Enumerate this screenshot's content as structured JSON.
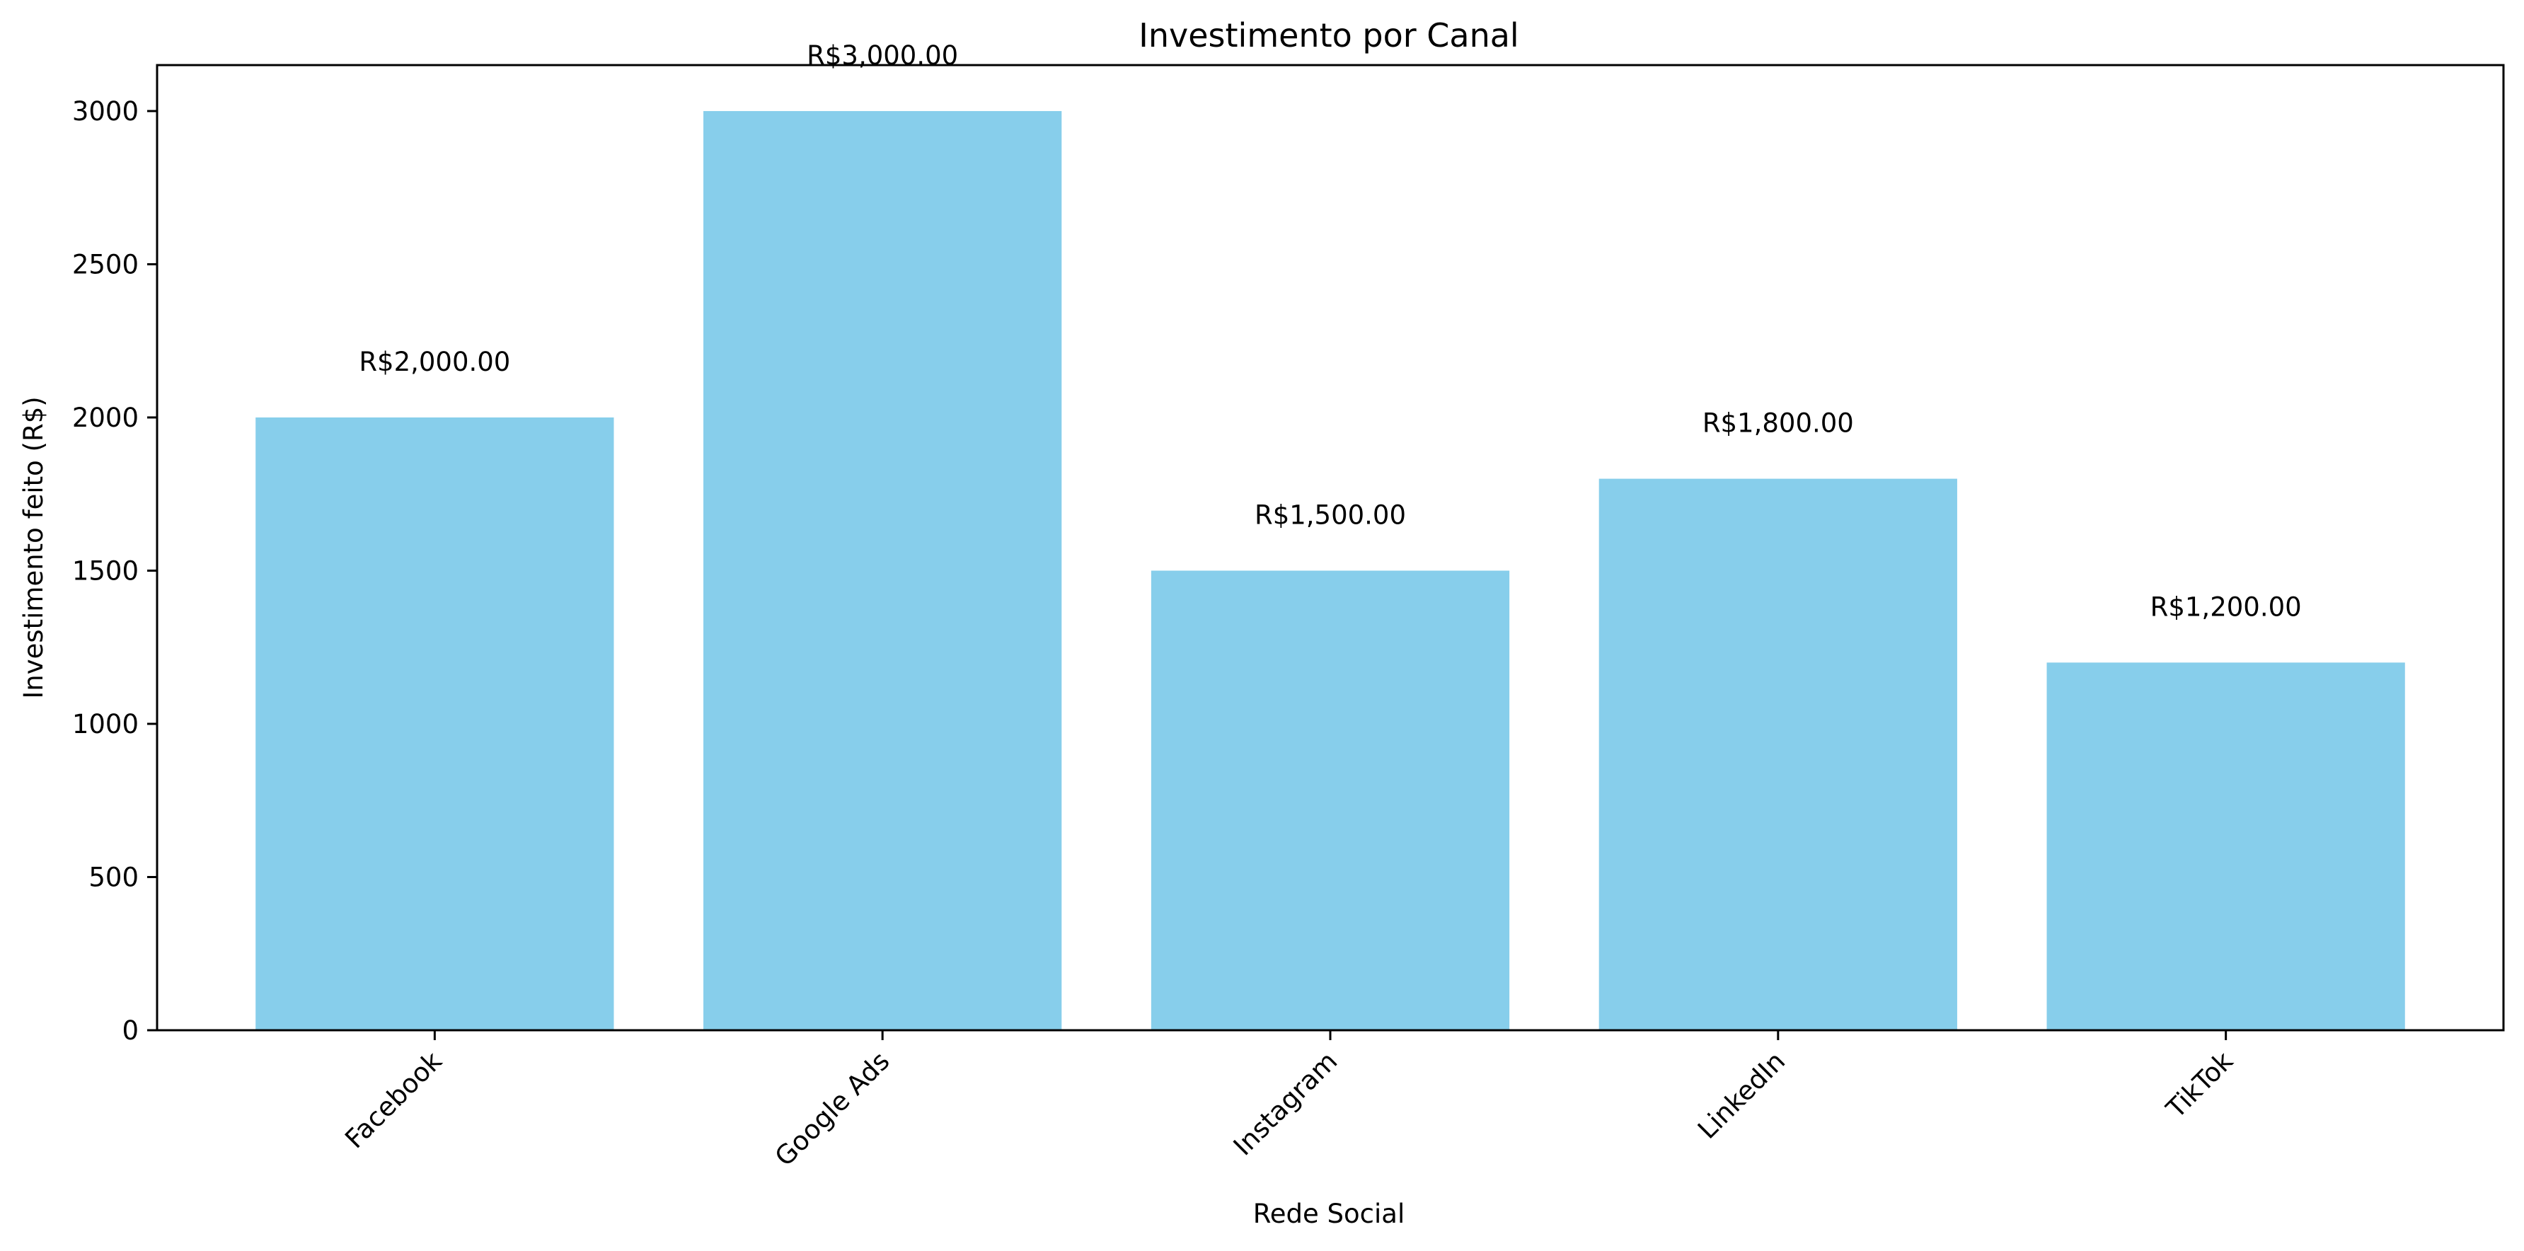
{
  "chart_data": {
    "type": "bar",
    "title": "Investimento por Canal",
    "xlabel": "Rede Social",
    "ylabel": "Investimento feito (R$)",
    "categories": [
      "Facebook",
      "Google Ads",
      "Instagram",
      "LinkedIn",
      "TikTok"
    ],
    "values": [
      2000,
      3000,
      1500,
      1800,
      1200
    ],
    "data_labels": [
      "R$2,000.00",
      "R$3,000.00",
      "R$1,500.00",
      "R$1,800.00",
      "R$1,200.00"
    ],
    "ylim": [
      0,
      3150
    ],
    "yticks": [
      0,
      500,
      1000,
      1500,
      2000,
      2500,
      3000
    ],
    "x_tick_rotation_deg": 45,
    "grid": false,
    "legend": "none",
    "colors": {
      "bar": "#87ceeb",
      "axis": "#000000",
      "background": "#ffffff"
    }
  }
}
